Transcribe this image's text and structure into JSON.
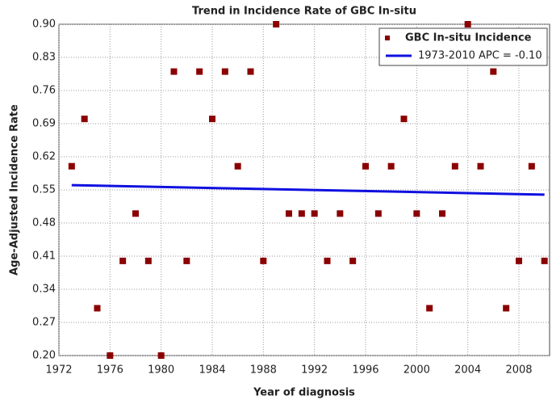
{
  "chart_data": {
    "type": "scatter",
    "title": "Trend in Incidence Rate of GBC In-situ",
    "x_label": "Year of diagnosis",
    "y_label": "Age-Adjusted Incidence Rate",
    "xlim": [
      1972,
      2010.4
    ],
    "ylim": [
      0.2,
      0.9
    ],
    "xticks": [
      1972,
      1976,
      1980,
      1984,
      1988,
      1992,
      1996,
      2000,
      2004,
      2008
    ],
    "yticks": [
      {
        "value": 0.2,
        "label": "0.20"
      },
      0.27,
      0.34,
      0.41,
      0.48,
      0.55,
      0.62,
      0.69,
      0.76,
      0.83,
      {
        "value": 0.9,
        "label": "0.90"
      }
    ],
    "grid": true,
    "legend": "upper right",
    "series": [
      {
        "name": "GBC In-situ Incidence",
        "type": "scatter",
        "color": "#8b0000",
        "x": [
          1973,
          1974,
          1975,
          1976,
          1977,
          1978,
          1979,
          1980,
          1981,
          1982,
          1983,
          1984,
          1985,
          1986,
          1987,
          1988,
          1989,
          1990,
          1991,
          1992,
          1993,
          1994,
          1995,
          1996,
          1997,
          1998,
          1999,
          2000,
          2001,
          2002,
          2003,
          2004,
          2005,
          2006,
          2007,
          2008,
          2009,
          2010
        ],
        "values": [
          0.6,
          0.7,
          0.3,
          0.2,
          0.4,
          0.5,
          0.4,
          0.2,
          0.8,
          0.4,
          0.8,
          0.7,
          0.8,
          0.6,
          0.8,
          0.4,
          0.9,
          0.5,
          0.5,
          0.5,
          0.4,
          0.5,
          0.4,
          0.6,
          0.5,
          0.6,
          0.7,
          0.5,
          0.3,
          0.5,
          0.6,
          0.9,
          0.6,
          0.8,
          0.3,
          0.4,
          0.6,
          0.4
        ]
      },
      {
        "name": "1973-2010 APC  = -0.10",
        "type": "line",
        "color": "#1010e0",
        "x": [
          1973,
          2010
        ],
        "values": [
          0.56,
          0.54
        ]
      }
    ]
  }
}
